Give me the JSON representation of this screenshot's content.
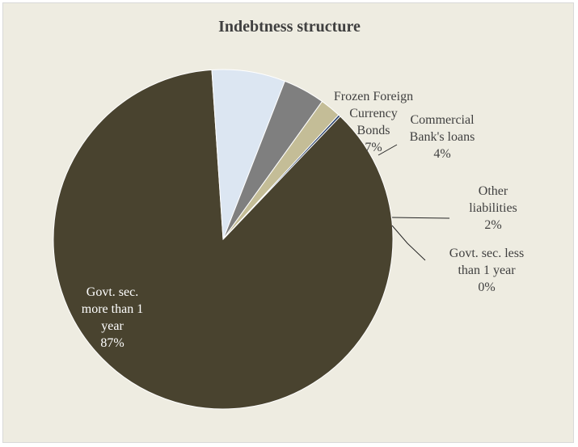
{
  "chart_data": {
    "type": "pie",
    "title": "Indebtness structure",
    "slices": [
      {
        "name": "Govt. sec. more than 1 year",
        "lines": [
          "Govt. sec.",
          "more than 1",
          "year"
        ],
        "pct_label": "87%",
        "value": 87,
        "color": "#49432f"
      },
      {
        "name": "Frozen Foreign Currency Bonds",
        "lines": [
          "Frozen Foreign",
          "Currency",
          "Bonds"
        ],
        "pct_label": "7%",
        "value": 7,
        "color": "#dce6f2"
      },
      {
        "name": "Commercial Bank's loans",
        "lines": [
          "Commercial",
          "Bank's loans"
        ],
        "pct_label": "4%",
        "value": 4,
        "color": "#7f7f7f"
      },
      {
        "name": "Other liabilities",
        "lines": [
          "Other",
          "liabilities"
        ],
        "pct_label": "2%",
        "value": 2,
        "color": "#c4bd97"
      },
      {
        "name": "Govt. sec. less than 1 year",
        "lines": [
          "Govt. sec. less",
          "than 1 year"
        ],
        "pct_label": "0%",
        "value": 0.2,
        "color": "#1f3864"
      }
    ],
    "legend": "none",
    "background": "#eeece1"
  }
}
